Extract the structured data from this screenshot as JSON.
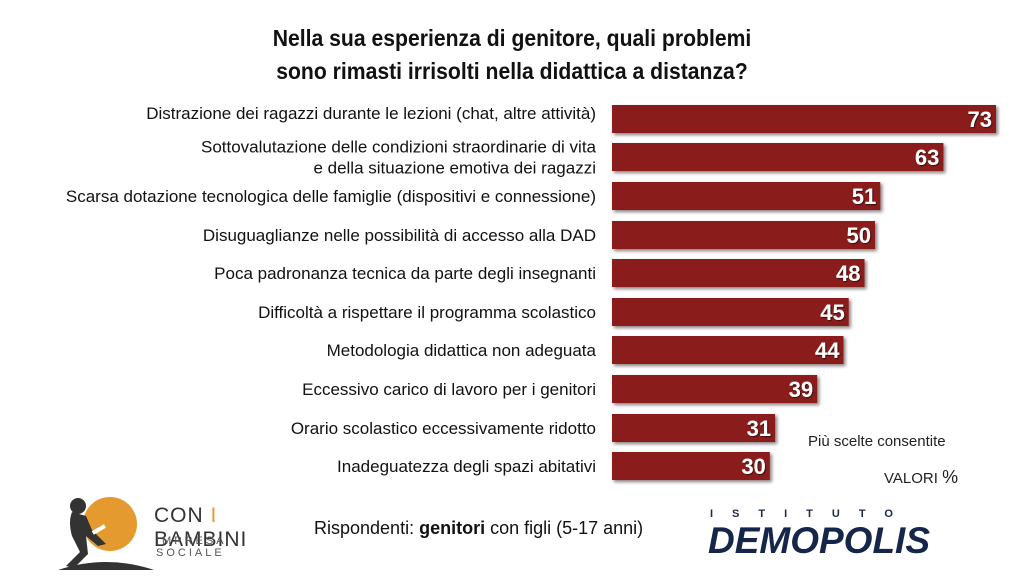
{
  "title_lines": [
    "Nella sua esperienza di genitore, quali problemi",
    "sono rimasti irrisolti nella didattica a distanza?"
  ],
  "notes": {
    "multiple": "Più scelte consentite",
    "values_word": "VALORI",
    "values_unit": "%"
  },
  "respondents": {
    "prefix": "Rispondenti: ",
    "bold": "genitori",
    "suffix": " con figli (5-17 anni)"
  },
  "logo_left": {
    "part1": "CON ",
    "part2": "I",
    "part3": " BAMBINI",
    "sub": "IMPRESA SOCIALE"
  },
  "logo_right": {
    "top": "ISTITUTO",
    "name": "DEMOPOLIS"
  },
  "colors": {
    "bar": "#8b1c1a",
    "bar_shadow": "#2a0808",
    "logo_orange": "#e49a2f",
    "logo_navy": "#16264a"
  },
  "chart_data": {
    "type": "bar",
    "orientation": "horizontal",
    "categories": [
      "Distrazione dei ragazzi durante le lezioni (chat, altre attività)",
      "Sottovalutazione delle condizioni straordinarie di vita|e della situazione emotiva dei ragazzi",
      "Scarsa dotazione tecnologica delle famiglie (dispositivi e connessione)",
      "Disuguaglianze nelle possibilità di accesso alla DAD",
      "Poca padronanza tecnica da parte degli insegnanti",
      "Difficoltà a rispettare il programma scolastico",
      "Metodologia didattica non adeguata",
      "Eccessivo carico di lavoro per i genitori",
      "Orario scolastico eccessivamente ridotto",
      "Inadeguatezza degli spazi abitativi"
    ],
    "values": [
      73,
      63,
      51,
      50,
      48,
      45,
      44,
      39,
      31,
      30
    ],
    "unit": "%",
    "data_labels": true,
    "grid": false,
    "xlim": [
      0,
      73
    ]
  }
}
